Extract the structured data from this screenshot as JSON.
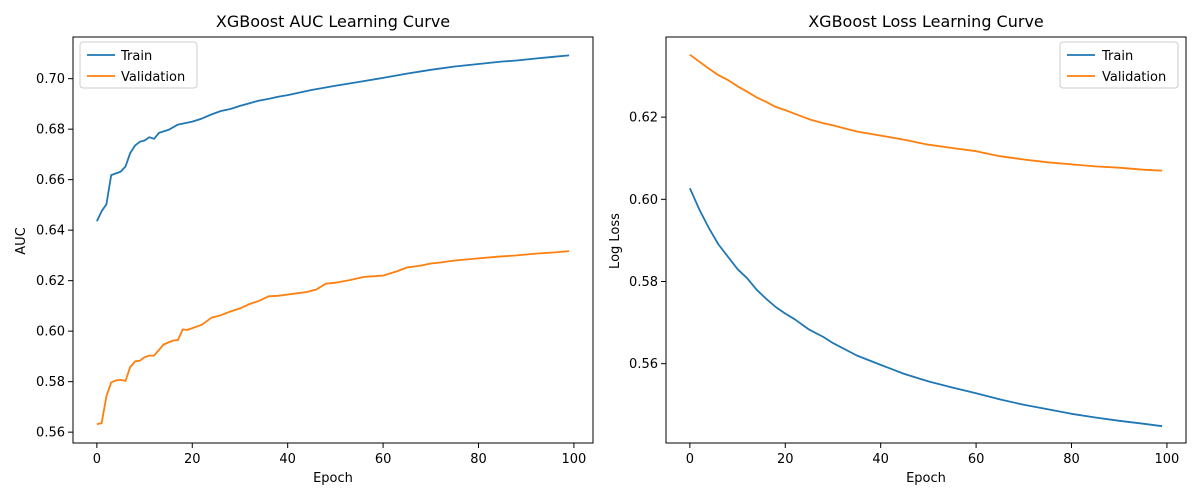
{
  "chart_data": [
    {
      "type": "line",
      "title": "XGBoost AUC Learning Curve",
      "xlabel": "Epoch",
      "ylabel": "AUC",
      "xlim": [
        -5,
        104
      ],
      "ylim": [
        0.5557,
        0.7165
      ],
      "xticks": [
        0,
        20,
        40,
        60,
        80,
        100
      ],
      "yticks": [
        0.56,
        0.58,
        0.6,
        0.62,
        0.64,
        0.66,
        0.68,
        0.7
      ],
      "ytick_labels": [
        "0.56",
        "0.58",
        "0.60",
        "0.62",
        "0.64",
        "0.66",
        "0.68",
        "0.70"
      ],
      "legend": "upper-left",
      "grid": false,
      "series": [
        {
          "name": "Train",
          "color": "#1f77b4",
          "x": [
            0,
            1,
            2,
            3,
            5,
            6,
            7,
            8,
            9,
            10,
            11,
            12,
            13,
            15,
            17,
            20,
            22,
            24,
            26,
            28,
            30,
            32,
            34,
            36,
            38,
            40,
            45,
            50,
            55,
            60,
            65,
            70,
            75,
            80,
            85,
            88,
            92,
            96,
            99
          ],
          "values": [
            0.6435,
            0.6475,
            0.6502,
            0.6618,
            0.6632,
            0.6652,
            0.6705,
            0.6735,
            0.675,
            0.6755,
            0.6768,
            0.6762,
            0.6785,
            0.6797,
            0.6818,
            0.683,
            0.6842,
            0.6858,
            0.6872,
            0.688,
            0.6892,
            0.6903,
            0.6913,
            0.692,
            0.6928,
            0.6935,
            0.6955,
            0.6972,
            0.6987,
            0.7003,
            0.702,
            0.7035,
            0.7048,
            0.7058,
            0.7068,
            0.7072,
            0.708,
            0.7087,
            0.7092
          ]
        },
        {
          "name": "Validation",
          "color": "#ff7f0e",
          "x": [
            0,
            1,
            2,
            3,
            4,
            5,
            6,
            7,
            8,
            9,
            10,
            11,
            12,
            14,
            16,
            17,
            18,
            19,
            20,
            22,
            24,
            26,
            28,
            30,
            32,
            34,
            36,
            38,
            40,
            42,
            44,
            46,
            48,
            50,
            53,
            56,
            60,
            63,
            65,
            68,
            70,
            72,
            75,
            80,
            84,
            88,
            92,
            96,
            99
          ],
          "values": [
            0.5632,
            0.5635,
            0.5742,
            0.5797,
            0.5805,
            0.5807,
            0.5803,
            0.5858,
            0.588,
            0.5883,
            0.5897,
            0.5903,
            0.5903,
            0.5947,
            0.5963,
            0.5965,
            0.6007,
            0.6005,
            0.6012,
            0.6025,
            0.6053,
            0.6063,
            0.6078,
            0.609,
            0.6107,
            0.612,
            0.6138,
            0.614,
            0.6145,
            0.615,
            0.6155,
            0.6165,
            0.6188,
            0.6192,
            0.6202,
            0.6215,
            0.622,
            0.6238,
            0.6252,
            0.626,
            0.6268,
            0.6272,
            0.628,
            0.6288,
            0.6295,
            0.63,
            0.6307,
            0.6312,
            0.6317
          ]
        }
      ]
    },
    {
      "type": "line",
      "title": "XGBoost Loss Learning Curve",
      "xlabel": "Epoch",
      "ylabel": "Log Loss",
      "xlim": [
        -5,
        104
      ],
      "ylim": [
        0.5407,
        0.6395
      ],
      "xticks": [
        0,
        20,
        40,
        60,
        80,
        100
      ],
      "yticks": [
        0.56,
        0.58,
        0.6,
        0.62
      ],
      "ytick_labels": [
        "0.56",
        "0.58",
        "0.60",
        "0.62"
      ],
      "legend": "upper-right",
      "grid": false,
      "series": [
        {
          "name": "Train",
          "color": "#1f77b4",
          "x": [
            0,
            2,
            4,
            6,
            8,
            10,
            12,
            14,
            16,
            18,
            20,
            22,
            25,
            28,
            30,
            35,
            40,
            45,
            50,
            55,
            60,
            65,
            70,
            75,
            80,
            85,
            90,
            95,
            99
          ],
          "values": [
            0.6027,
            0.5975,
            0.593,
            0.589,
            0.586,
            0.583,
            0.5808,
            0.578,
            0.5758,
            0.5738,
            0.5722,
            0.5708,
            0.5683,
            0.5665,
            0.565,
            0.562,
            0.5597,
            0.5575,
            0.5557,
            0.5542,
            0.5528,
            0.5513,
            0.55,
            0.5489,
            0.5478,
            0.5469,
            0.5461,
            0.5454,
            0.5448
          ]
        },
        {
          "name": "Validation",
          "color": "#ff7f0e",
          "x": [
            0,
            2,
            4,
            6,
            8,
            10,
            12,
            14,
            16,
            18,
            20,
            22,
            25,
            28,
            30,
            35,
            40,
            45,
            50,
            55,
            60,
            65,
            70,
            75,
            80,
            85,
            90,
            95,
            99
          ],
          "values": [
            0.6352,
            0.6335,
            0.6318,
            0.6302,
            0.629,
            0.6275,
            0.6262,
            0.6248,
            0.6237,
            0.6225,
            0.6217,
            0.6208,
            0.6195,
            0.6185,
            0.618,
            0.6165,
            0.6155,
            0.6145,
            0.6133,
            0.6125,
            0.6117,
            0.6105,
            0.6097,
            0.609,
            0.6085,
            0.608,
            0.6077,
            0.6072,
            0.607
          ]
        }
      ]
    }
  ]
}
